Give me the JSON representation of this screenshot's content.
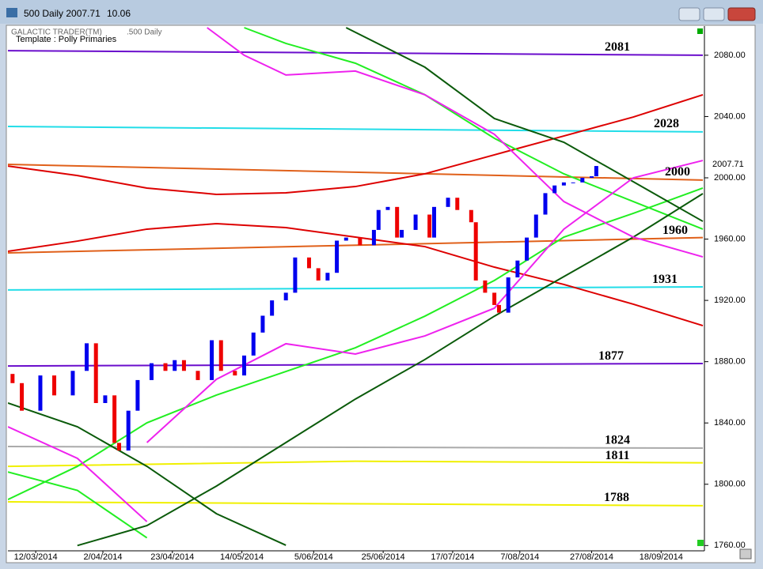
{
  "window": {
    "title": "500 Daily 2007.71",
    "value": "10.06",
    "price_tag": "2007.71"
  },
  "chart_data": {
    "type": "candlestick",
    "title": "GALACTIC TRADER(TM)",
    "subtitle": ".500 Daily",
    "annotation": "Template : Polly Primaries",
    "up_color": "#0000ee",
    "down_color": "#ee0000",
    "xlim": [
      0,
      150
    ],
    "ylim": [
      1755,
      2098
    ],
    "xticks": [
      {
        "value": 6,
        "label": "12/03/2014"
      },
      {
        "value": 20.5,
        "label": "2/04/2014"
      },
      {
        "value": 35.5,
        "label": "23/04/2014"
      },
      {
        "value": 50.5,
        "label": "14/05/2014"
      },
      {
        "value": 66,
        "label": "5/06/2014"
      },
      {
        "value": 81,
        "label": "25/06/2014"
      },
      {
        "value": 96,
        "label": "17/07/2014"
      },
      {
        "value": 110.5,
        "label": "7/08/2014"
      },
      {
        "value": 126,
        "label": "27/08/2014"
      },
      {
        "value": 141,
        "label": "18/09/2014"
      }
    ],
    "yticks": [
      {
        "value": 1760,
        "label": "1760.00"
      },
      {
        "value": 1800,
        "label": "1800.00"
      },
      {
        "value": 1840,
        "label": "1840.00"
      },
      {
        "value": 1880,
        "label": "1880.00"
      },
      {
        "value": 1920,
        "label": "1920.00"
      },
      {
        "value": 1960,
        "label": "1960.00"
      },
      {
        "value": 2000,
        "label": "2000.00"
      },
      {
        "value": 2040,
        "label": "2040.00"
      },
      {
        "value": 2080,
        "label": "2080.00"
      }
    ],
    "candles": {
      "x": [
        1,
        3,
        7,
        10,
        14,
        17,
        19,
        21,
        23,
        24,
        26,
        28,
        31,
        34,
        36,
        38,
        41,
        44,
        46,
        49,
        51,
        53,
        55,
        57,
        60,
        62,
        65,
        67,
        69,
        71,
        73,
        76,
        79,
        80,
        82,
        84,
        85,
        88,
        91,
        92,
        95,
        97,
        100,
        101,
        103,
        105,
        106,
        108,
        110,
        112,
        114,
        116,
        118,
        120,
        122,
        124,
        126,
        127
      ],
      "open": [
        1872,
        1866,
        1848,
        1871,
        1858,
        1874,
        1892,
        1853,
        1858,
        1827,
        1822,
        1848,
        1868,
        1879,
        1874,
        1881,
        1874,
        1868,
        1894,
        1874,
        1871,
        1884,
        1899,
        1910,
        1920,
        1925,
        1948,
        1941,
        1933,
        1938,
        1959,
        1961,
        1956,
        1966,
        1979,
        1981,
        1961,
        1966,
        1976,
        1961,
        1981,
        1987,
        1979,
        1971,
        1933,
        1925,
        1917,
        1912,
        1935,
        1946,
        1961,
        1976,
        1990,
        1995,
        1997,
        1997,
        2000,
        2001
      ],
      "close": [
        1866,
        1848,
        1871,
        1858,
        1874,
        1892,
        1853,
        1858,
        1827,
        1822,
        1848,
        1868,
        1879,
        1874,
        1881,
        1874,
        1868,
        1894,
        1874,
        1871,
        1884,
        1899,
        1910,
        1920,
        1925,
        1948,
        1941,
        1933,
        1938,
        1959,
        1961,
        1956,
        1966,
        1979,
        1981,
        1961,
        1966,
        1976,
        1961,
        1981,
        1987,
        1979,
        1971,
        1933,
        1925,
        1917,
        1912,
        1935,
        1946,
        1961,
        1976,
        1990,
        1995,
        1997,
        1997,
        2000,
        2001,
        2007.71
      ]
    },
    "series": [
      {
        "label": "2081",
        "color": "#6a0dcc",
        "x": [
          0,
          150
        ],
        "values": [
          2083,
          2080
        ]
      },
      {
        "label": "2028",
        "color": "#22dde8",
        "x": [
          0,
          150
        ],
        "values": [
          2033.5,
          2030
        ]
      },
      {
        "label": "2000",
        "color": "#e0601a",
        "x": [
          0,
          150
        ],
        "values": [
          2008.8,
          1998.5
        ]
      },
      {
        "label": "1960",
        "color": "#e0601a",
        "x": [
          0,
          150
        ],
        "values": [
          1951,
          1961
        ]
      },
      {
        "label": "1931",
        "color": "#22dde8",
        "x": [
          0,
          150
        ],
        "values": [
          1926.8,
          1928.8
        ]
      },
      {
        "label": "1877",
        "color": "#6a0dcc",
        "x": [
          0,
          150
        ],
        "values": [
          1877.2,
          1878.8
        ]
      },
      {
        "label": "1824",
        "color": "#aaaaaa",
        "x": [
          0,
          150
        ],
        "values": [
          1824.6,
          1823.6
        ]
      },
      {
        "label": "1811",
        "color": "#f0f000",
        "x": [
          0,
          75,
          150
        ],
        "values": [
          1811.7,
          1815,
          1814
        ]
      },
      {
        "label": "1788",
        "color": "#f0f000",
        "x": [
          0,
          150
        ],
        "values": [
          1788.5,
          1786
        ]
      },
      {
        "color": "#dd0000",
        "x": [
          0,
          15,
          30,
          45,
          60,
          75,
          90,
          105,
          120,
          135,
          150
        ],
        "values": [
          2007.7,
          2001.5,
          1993.3,
          1989.2,
          1990.2,
          1994.3,
          2002.6,
          2015,
          2027.3,
          2039.7,
          2054.2
        ]
      },
      {
        "color": "#dd0000",
        "x": [
          0,
          15,
          30,
          45,
          60,
          75,
          90,
          105,
          120,
          135,
          150
        ],
        "values": [
          1952,
          1958.7,
          1966.5,
          1970.1,
          1967.5,
          1961.3,
          1955.1,
          1941.7,
          1930.4,
          1917.5,
          1903.5
        ]
      },
      {
        "color": "#22ee22",
        "x": [
          0,
          15,
          30,
          45,
          60,
          75,
          90,
          105,
          120,
          135,
          150
        ],
        "values": [
          1790,
          1811.7,
          1840.1,
          1858.2,
          1873.6,
          1889.1,
          1909.7,
          1933,
          1961.3,
          1976.8,
          1993.3
        ]
      },
      {
        "color": "#22ee22",
        "x": [
          51,
          60,
          75,
          90,
          105,
          120,
          135,
          150
        ],
        "values": [
          2098,
          2087.7,
          2074.8,
          2054.2,
          2025.8,
          2002.6,
          1984.5,
          1966.5
        ]
      },
      {
        "color": "#22ee22",
        "x": [
          0,
          15,
          30
        ],
        "values": [
          1808,
          1796,
          1765
        ]
      },
      {
        "color": "#0a5a0a",
        "x": [
          15,
          30,
          45,
          60,
          75,
          90,
          105,
          120,
          135,
          150
        ],
        "values": [
          1760,
          1773,
          1798.8,
          1827.2,
          1855.6,
          1881.4,
          1909.7,
          1935.5,
          1961.3,
          1989.7
        ]
      },
      {
        "color": "#0a5a0a",
        "x": [
          73,
          90,
          105,
          120,
          135,
          150
        ],
        "values": [
          2098,
          2072.2,
          2038.7,
          2023.2,
          1997.4,
          1971.6
        ]
      },
      {
        "color": "#0a5a0a",
        "x": [
          0,
          15,
          30,
          45,
          60
        ],
        "values": [
          1853,
          1837.5,
          1811.7,
          1780.8,
          1760.2
        ]
      },
      {
        "color": "#ee22ee",
        "x": [
          43,
          51,
          60,
          75,
          90,
          105,
          120,
          135,
          150
        ],
        "values": [
          2098,
          2080,
          2067.1,
          2069.7,
          2054.2,
          2028.4,
          1984.5,
          1961.3,
          1948.4
        ]
      },
      {
        "color": "#ee22ee",
        "x": [
          30,
          45,
          60,
          75,
          90,
          105,
          120,
          135,
          150
        ],
        "values": [
          1827.2,
          1868.5,
          1891.7,
          1885,
          1896.8,
          1914.9,
          1966.5,
          2000,
          2011.3
        ]
      },
      {
        "color": "#ee22ee",
        "x": [
          0,
          15,
          30
        ],
        "values": [
          1837.5,
          1816.9,
          1775.6
        ]
      }
    ]
  }
}
